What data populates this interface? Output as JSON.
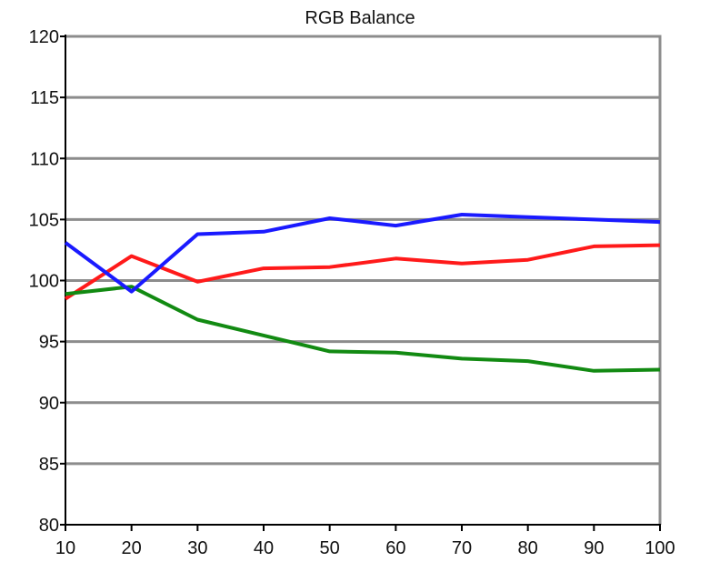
{
  "chart_data": {
    "type": "line",
    "title": "RGB Balance",
    "xlabel": "",
    "ylabel": "",
    "x": [
      10,
      20,
      30,
      40,
      50,
      60,
      70,
      80,
      90,
      100
    ],
    "xlim": [
      10,
      100
    ],
    "ylim": [
      80,
      120
    ],
    "yticks": [
      80,
      85,
      90,
      95,
      100,
      105,
      110,
      115,
      120
    ],
    "xticks": [
      10,
      20,
      30,
      40,
      50,
      60,
      70,
      80,
      90,
      100
    ],
    "grid": "horizontal",
    "legend": "none",
    "series": [
      {
        "color": "#ff1a1a",
        "values": [
          98.5,
          102.0,
          99.9,
          101.0,
          101.1,
          101.8,
          101.4,
          101.7,
          102.8,
          102.9
        ]
      },
      {
        "color": "#128a12",
        "values": [
          98.9,
          99.5,
          96.8,
          95.5,
          94.2,
          94.1,
          93.6,
          93.4,
          92.6,
          92.7
        ]
      },
      {
        "color": "#1a1aff",
        "values": [
          103.1,
          99.1,
          103.8,
          104.0,
          105.1,
          104.5,
          105.4,
          105.2,
          105.0,
          104.8
        ]
      }
    ]
  }
}
